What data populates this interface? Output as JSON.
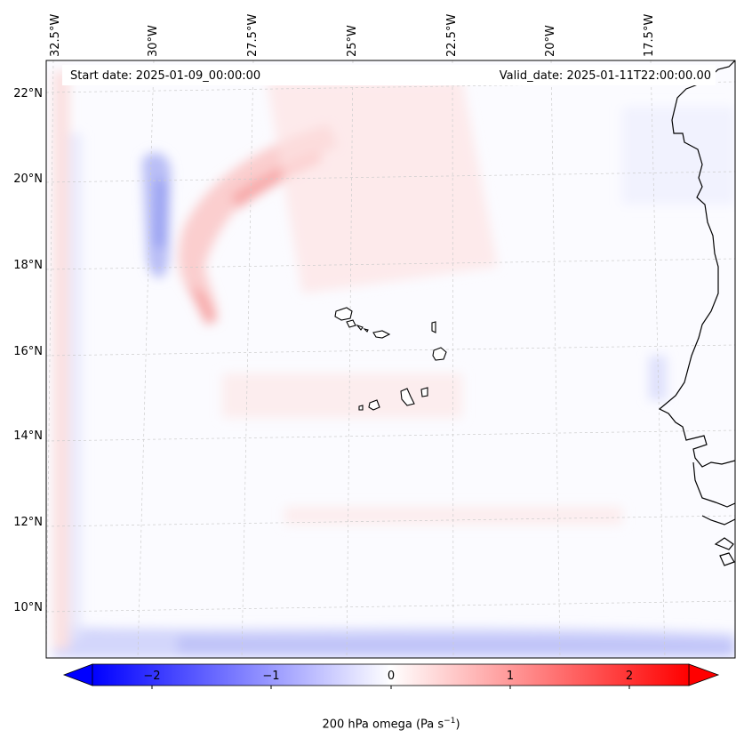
{
  "header": {
    "start_date": "Start date: 2025-01-09_00:00:00",
    "valid_date": "Valid_date: 2025-01-11T22:00:00.00"
  },
  "map": {
    "longitude_labels": [
      "32.5°W",
      "30°W",
      "27.5°W",
      "25°W",
      "22.5°W",
      "20°W",
      "17.5°W"
    ],
    "latitude_labels": [
      "22°N",
      "20°N",
      "18°N",
      "16°N",
      "14°N",
      "12°N",
      "10°N"
    ],
    "field": "200 hPa omega"
  },
  "colorbar": {
    "ticks": [
      "−2",
      "−1",
      "0",
      "1",
      "2"
    ],
    "label_text": "200 hPa omega (Pa s",
    "label_exp": "−1",
    "label_close": ")",
    "range": [
      -2.7,
      2.7
    ],
    "colors": {
      "negative": "#0000ff",
      "zero": "#ffffff",
      "positive": "#ff0000"
    }
  }
}
